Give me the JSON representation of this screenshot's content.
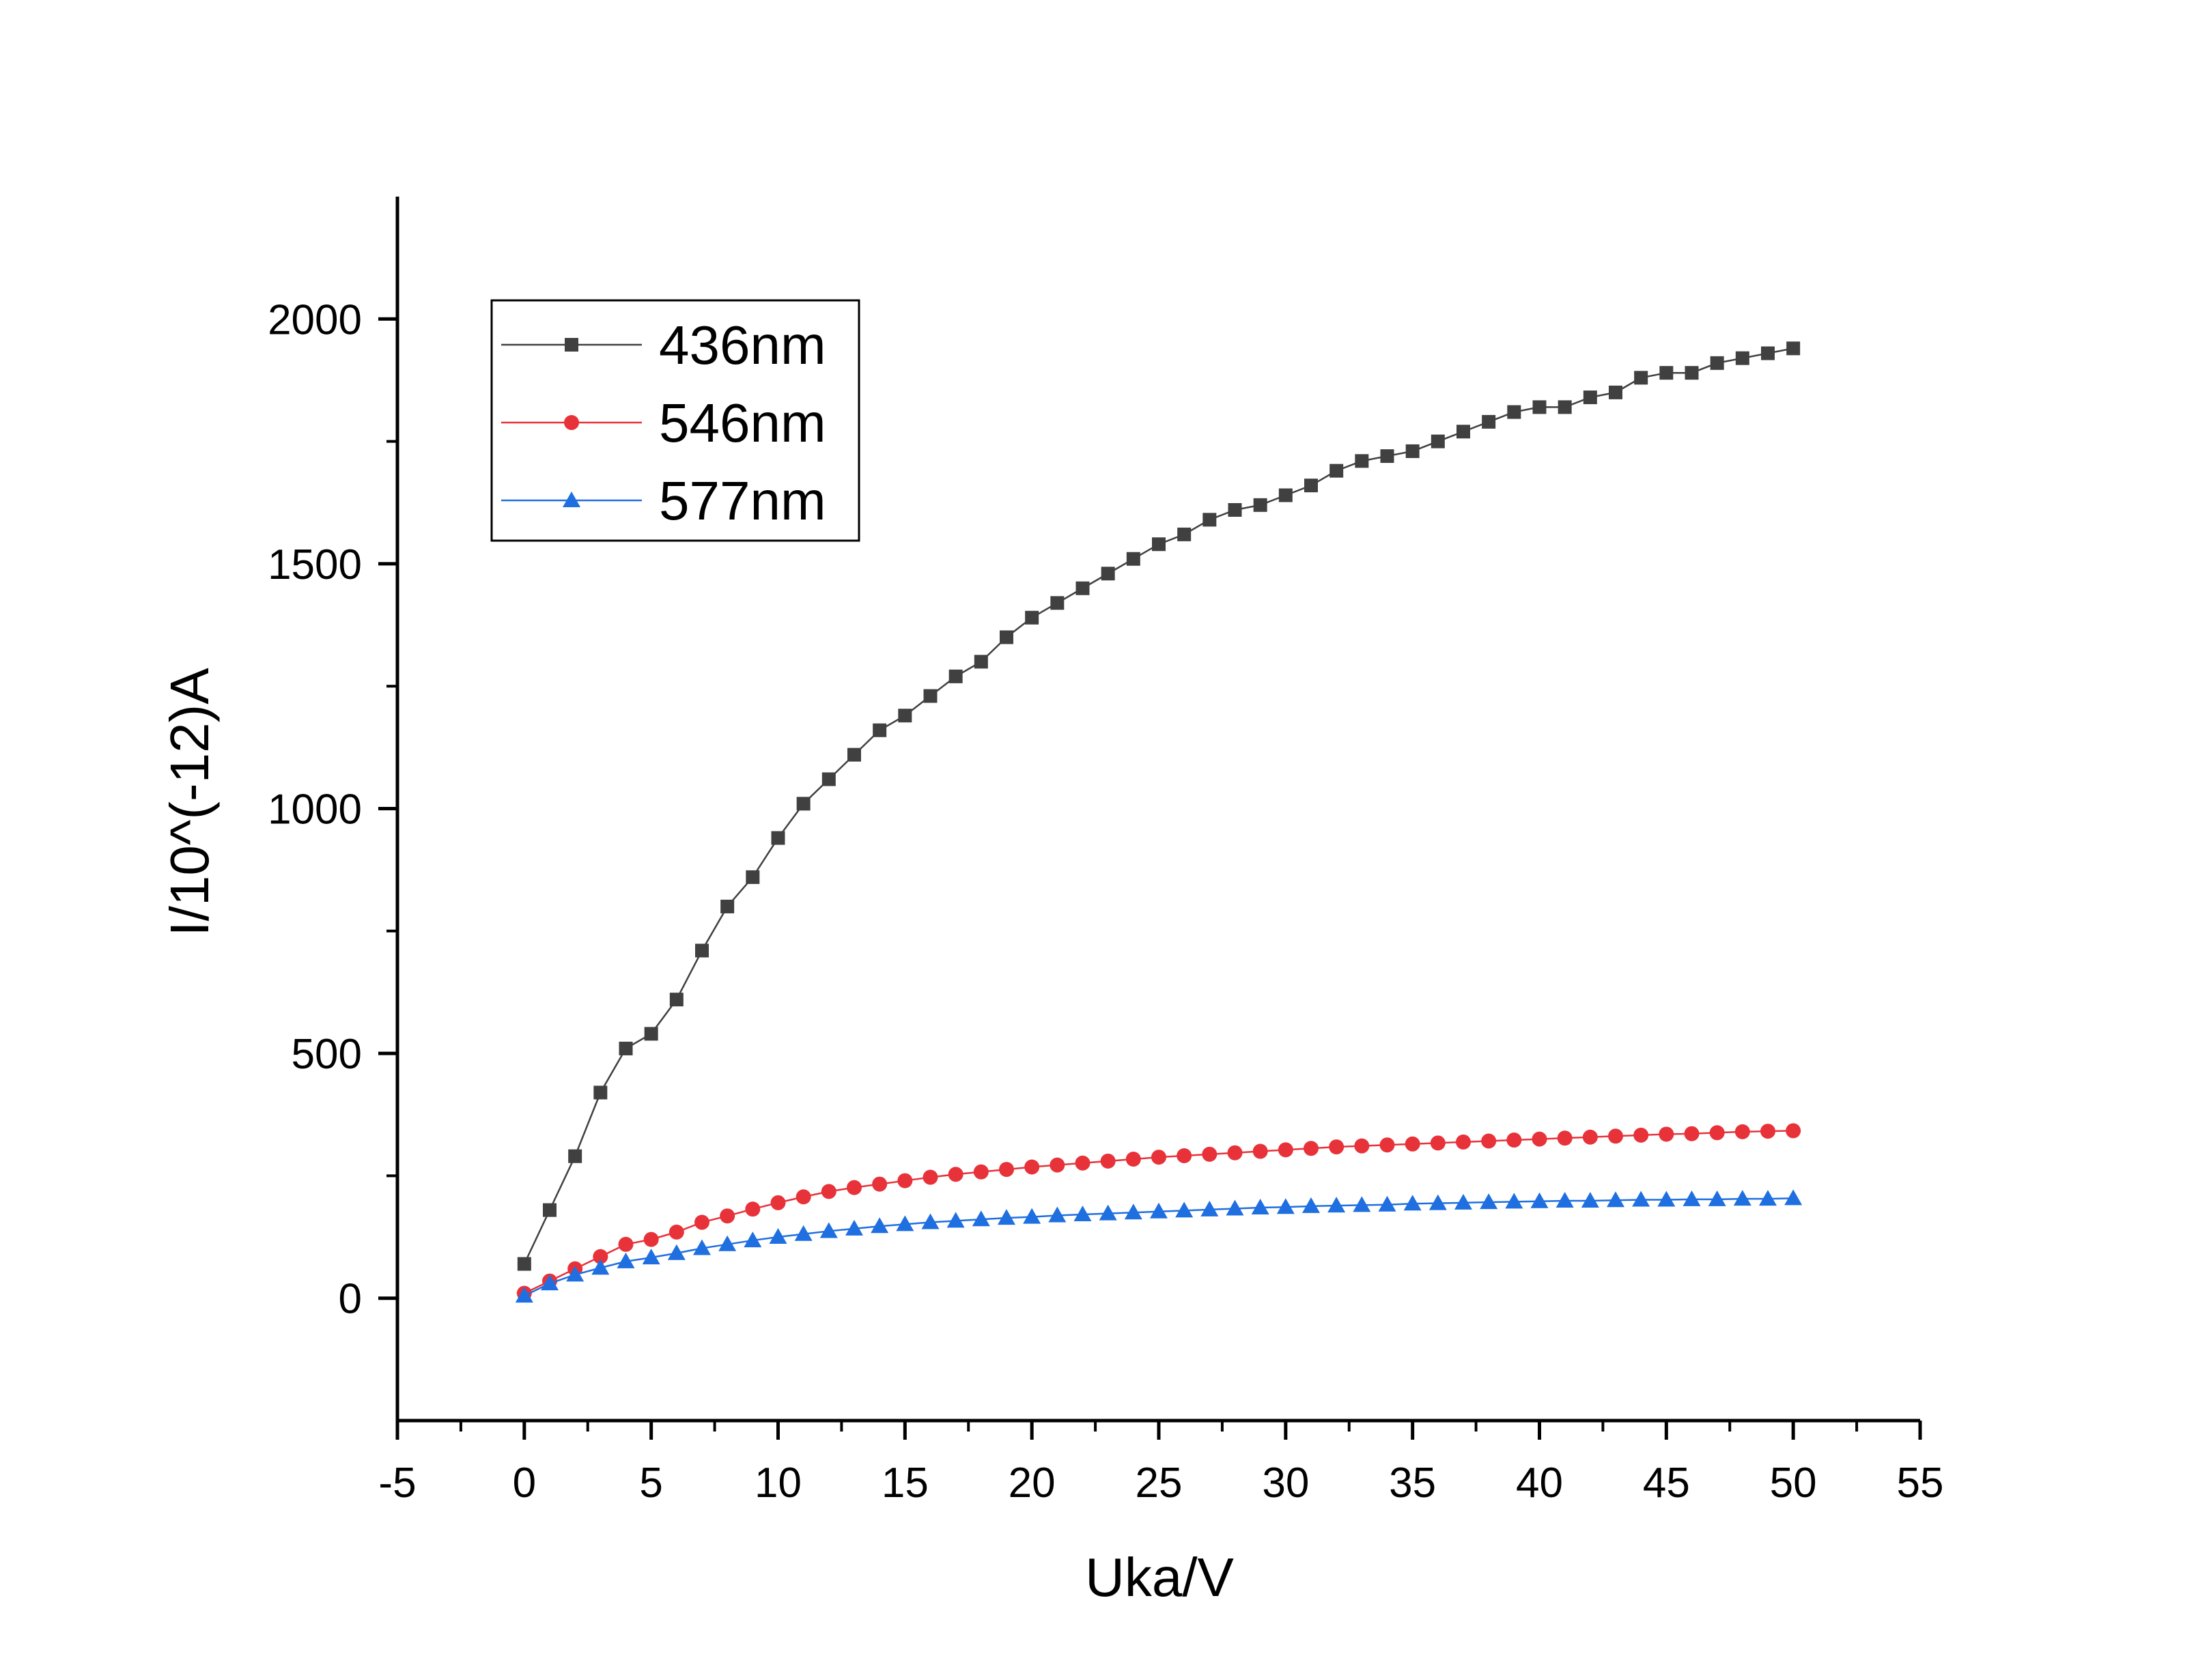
{
  "chart_data": {
    "type": "line",
    "title": "",
    "xlabel": "Uka/V",
    "ylabel": "I/10^(-12)A",
    "xlim": [
      -5,
      55
    ],
    "ylim": [
      -250,
      2250
    ],
    "xticks": [
      -5,
      0,
      5,
      10,
      15,
      20,
      25,
      30,
      35,
      40,
      45,
      50,
      55
    ],
    "yticks": [
      0,
      500,
      1000,
      1500,
      2000
    ],
    "x_minor_step": 2.5,
    "y_minor_step": 250,
    "grid": false,
    "legend_position": "top-left",
    "x": [
      0,
      1,
      2,
      3,
      4,
      5,
      6,
      7,
      8,
      9,
      10,
      11,
      12,
      13,
      14,
      15,
      16,
      17,
      18,
      19,
      20,
      21,
      22,
      23,
      24,
      25,
      26,
      27,
      28,
      29,
      30,
      31,
      32,
      33,
      34,
      35,
      36,
      37,
      38,
      39,
      40,
      41,
      42,
      43,
      44,
      45,
      46,
      47,
      48,
      49,
      50
    ],
    "series": [
      {
        "name": "436nm",
        "color": "#404040",
        "marker": "square",
        "values": [
          70,
          180,
          290,
          420,
          510,
          540,
          610,
          710,
          800,
          860,
          940,
          1010,
          1060,
          1110,
          1160,
          1190,
          1230,
          1270,
          1300,
          1350,
          1390,
          1420,
          1450,
          1480,
          1510,
          1540,
          1560,
          1590,
          1610,
          1620,
          1640,
          1660,
          1690,
          1710,
          1720,
          1730,
          1750,
          1770,
          1790,
          1810,
          1820,
          1820,
          1840,
          1850,
          1880,
          1890,
          1890,
          1910,
          1920,
          1930,
          1940
        ]
      },
      {
        "name": "546nm",
        "color": "#e8323a",
        "marker": "circle",
        "values": [
          10,
          35,
          60,
          85,
          110,
          120,
          135,
          155,
          168,
          182,
          195,
          207,
          218,
          226,
          233,
          240,
          247,
          253,
          258,
          263,
          268,
          272,
          276,
          280,
          284,
          288,
          291,
          294,
          297,
          300,
          303,
          306,
          309,
          311,
          313,
          315,
          317,
          319,
          321,
          323,
          325,
          327,
          329,
          331,
          333,
          335,
          336,
          338,
          340,
          341,
          342
        ]
      },
      {
        "name": "577nm",
        "color": "#1f6fe0",
        "marker": "triangle",
        "values": [
          5,
          30,
          48,
          62,
          75,
          83,
          92,
          102,
          110,
          118,
          125,
          131,
          137,
          142,
          147,
          151,
          155,
          158,
          161,
          164,
          166,
          169,
          171,
          173,
          175,
          177,
          179,
          181,
          183,
          185,
          186,
          188,
          189,
          190,
          191,
          193,
          194,
          195,
          196,
          197,
          198,
          199,
          199,
          200,
          201,
          201,
          202,
          202,
          203,
          203,
          204
        ]
      }
    ]
  }
}
